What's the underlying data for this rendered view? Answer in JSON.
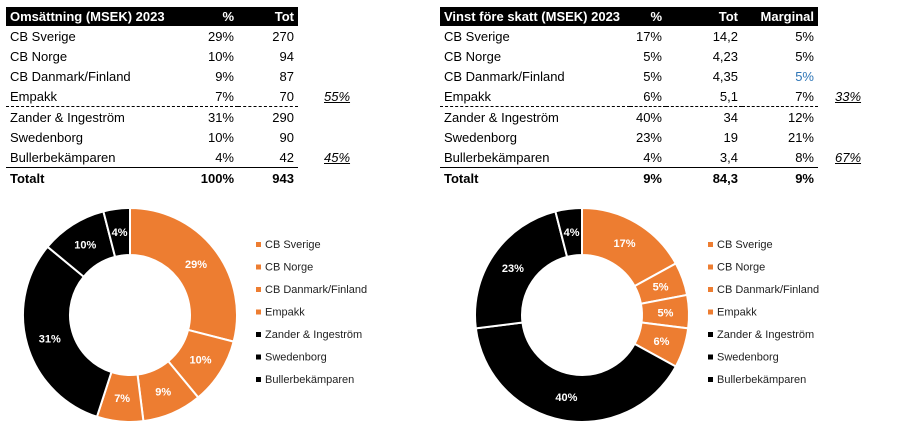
{
  "revenue_table": {
    "headers": [
      "Omsättning (MSEK) 2023",
      "%",
      "Tot"
    ],
    "rows": [
      {
        "name": "CB Sverige",
        "pct": "29%",
        "tot": "270"
      },
      {
        "name": "CB Norge",
        "pct": "10%",
        "tot": "94"
      },
      {
        "name": "CB Danmark/Finland",
        "pct": "9%",
        "tot": "87"
      },
      {
        "name": "Empakk",
        "pct": "7%",
        "tot": "70"
      },
      {
        "name": "Zander & Ingeström",
        "pct": "31%",
        "tot": "290"
      },
      {
        "name": "Swedenborg",
        "pct": "10%",
        "tot": "90"
      },
      {
        "name": "Bullerbekämparen",
        "pct": "4%",
        "tot": "42"
      }
    ],
    "total": {
      "name": "Totalt",
      "pct": "100%",
      "tot": "943"
    },
    "notes": {
      "group1": "55%",
      "group2": "45%"
    }
  },
  "profit_table": {
    "headers": [
      "Vinst före skatt (MSEK) 2023",
      "%",
      "Tot",
      "Marginal"
    ],
    "rows": [
      {
        "name": "CB Sverige",
        "pct": "17%",
        "tot": "14,2",
        "margin": "5%"
      },
      {
        "name": "CB Norge",
        "pct": "5%",
        "tot": "4,23",
        "margin": "5%"
      },
      {
        "name": "CB Danmark/Finland",
        "pct": "5%",
        "tot": "4,35",
        "margin": "5%"
      },
      {
        "name": "Empakk",
        "pct": "6%",
        "tot": "5,1",
        "margin": "7%"
      },
      {
        "name": "Zander & Ingeström",
        "pct": "40%",
        "tot": "34",
        "margin": "12%"
      },
      {
        "name": "Swedenborg",
        "pct": "23%",
        "tot": "19",
        "margin": "21%"
      },
      {
        "name": "Bullerbekämparen",
        "pct": "4%",
        "tot": "3,4",
        "margin": "8%"
      }
    ],
    "total": {
      "name": "Totalt",
      "pct": "9%",
      "tot": "84,3",
      "margin": "9%"
    },
    "notes": {
      "group1": "33%",
      "group2": "67%"
    }
  },
  "colors": {
    "orange": "#ed7d31",
    "black": "#000000",
    "blue": "#2e75b6"
  },
  "chart_data": [
    {
      "type": "pie",
      "variant": "donut",
      "title": "Omsättning (MSEK) 2023",
      "categories": [
        "CB Sverige",
        "CB Norge",
        "CB Danmark/Finland",
        "Empakk",
        "Zander & Ingeström",
        "Swedenborg",
        "Bullerbekämparen"
      ],
      "values": [
        29,
        10,
        9,
        7,
        31,
        10,
        4
      ],
      "labels": [
        "29%",
        "10%",
        "9%",
        "7%",
        "31%",
        "10%",
        "4%"
      ],
      "colors": [
        "#ed7d31",
        "#ed7d31",
        "#ed7d31",
        "#ed7d31",
        "#000000",
        "#000000",
        "#000000"
      ],
      "legend": "right"
    },
    {
      "type": "pie",
      "variant": "donut",
      "title": "Vinst före skatt (MSEK) 2023",
      "categories": [
        "CB Sverige",
        "CB Norge",
        "CB Danmark/Finland",
        "Empakk",
        "Zander & Ingeström",
        "Swedenborg",
        "Bullerbekämparen"
      ],
      "values": [
        17,
        5,
        5,
        6,
        40,
        23,
        4
      ],
      "labels": [
        "17%",
        "5%",
        "5%",
        "6%",
        "40%",
        "23%",
        "4%"
      ],
      "colors": [
        "#ed7d31",
        "#ed7d31",
        "#ed7d31",
        "#ed7d31",
        "#000000",
        "#000000",
        "#000000"
      ],
      "legend": "right"
    }
  ]
}
